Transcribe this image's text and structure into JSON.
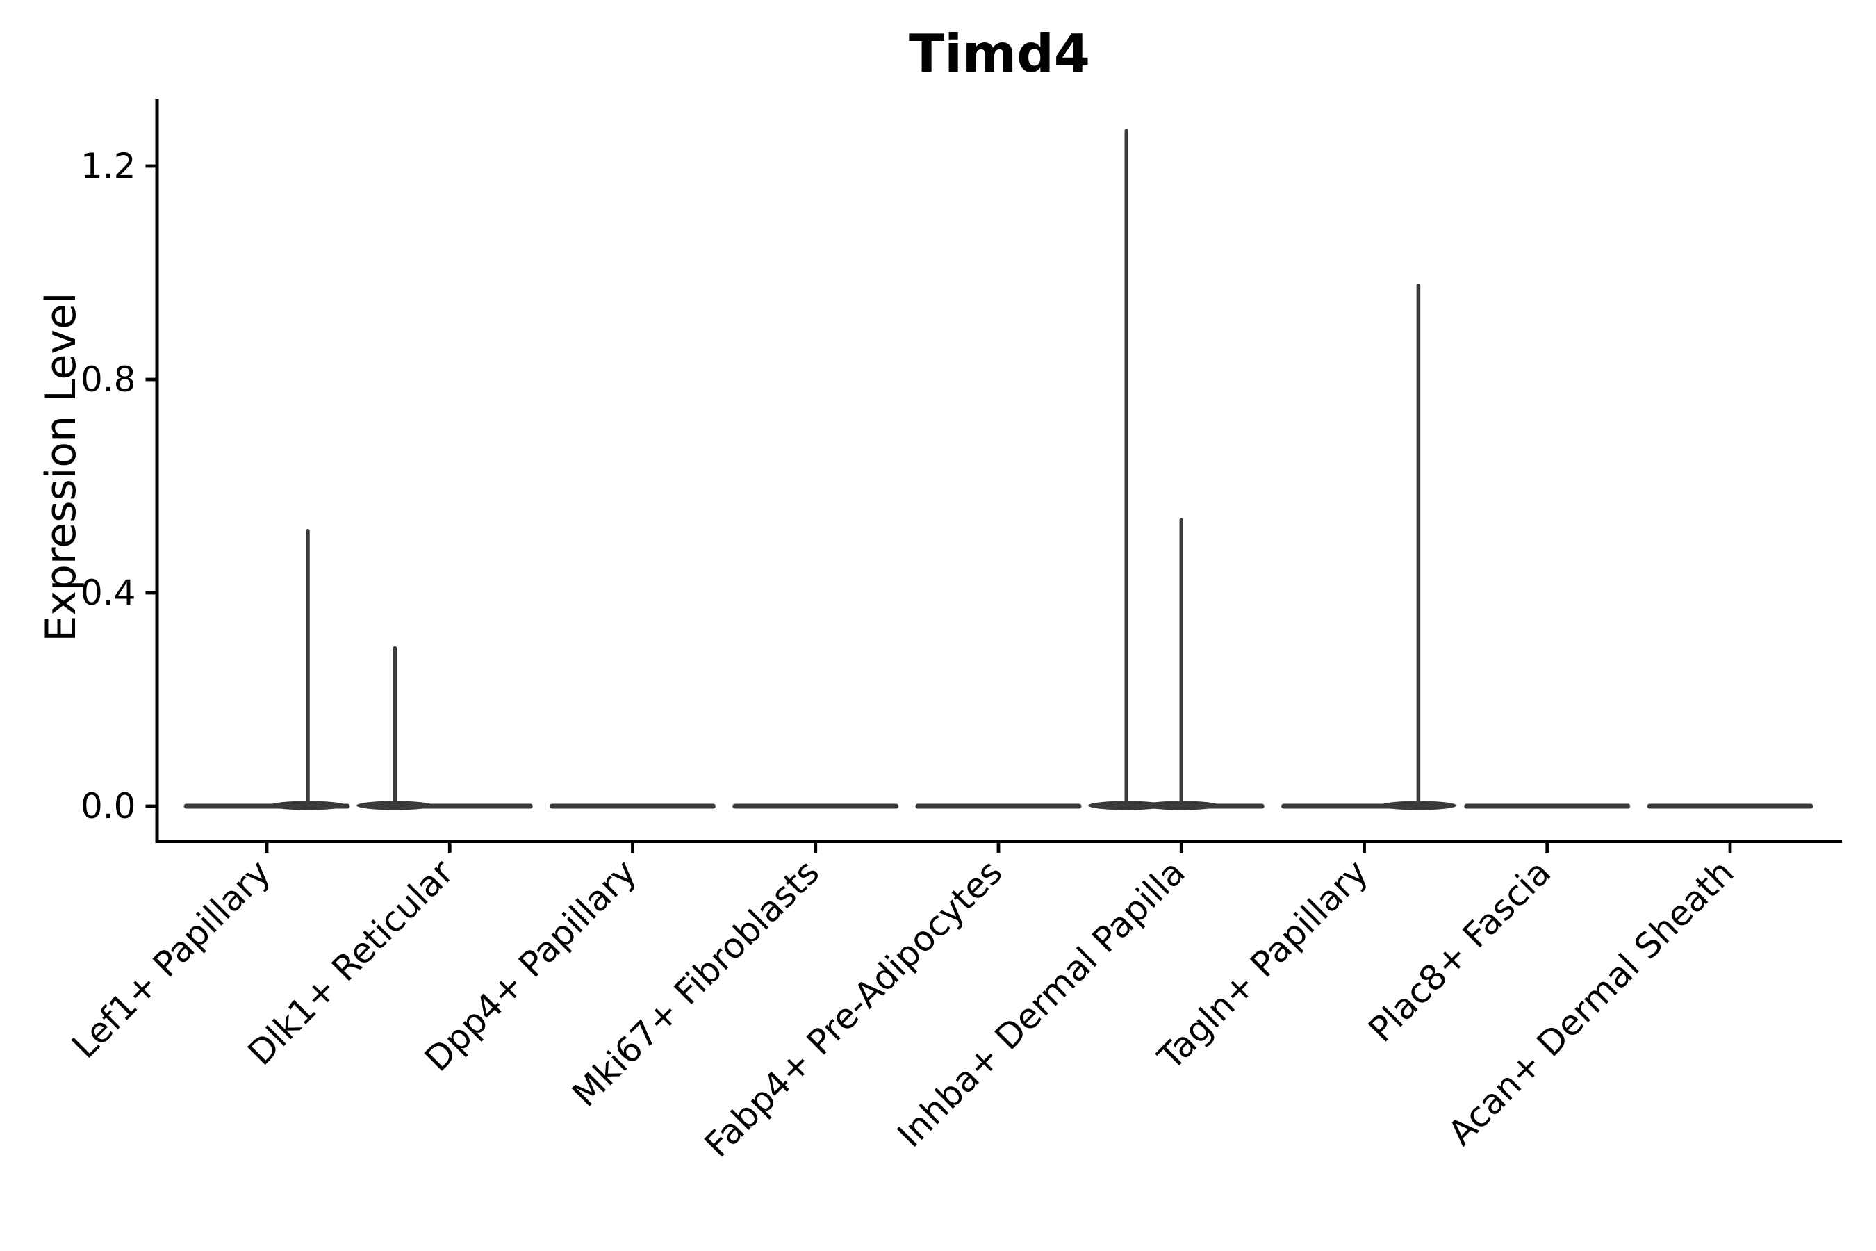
{
  "chart_data": {
    "type": "violin",
    "title": "Timd4",
    "ylabel": "Expression Level",
    "xlabel": "",
    "legend": "none",
    "grid": false,
    "background": "#ffffff",
    "yticks": [
      {
        "label": "0.0",
        "value": 0.0
      },
      {
        "label": "0.4",
        "value": 0.4
      },
      {
        "label": "0.8",
        "value": 0.8
      },
      {
        "label": "1.2",
        "value": 1.2
      }
    ],
    "ylim": [
      -0.07,
      1.33
    ],
    "categories": [
      "Lef1+ Papillary",
      "Dlk1+ Reticular",
      "Dpp4+ Papillary",
      "Mki67+ Fibroblasts",
      "Fabp4+ Pre-Adipocytes",
      "Inhba+ Dermal Papilla",
      "Tagln+ Papillary",
      "Plac8+ Fascia",
      "Acan+ Dermal Sheath"
    ],
    "violins": [
      {
        "category": "Lef1+ Papillary",
        "baseline_value": 0.0,
        "max_expression": 0.52,
        "peaks": [
          {
            "value": 0.52,
            "x_offset_frac": 0.224
          }
        ]
      },
      {
        "category": "Dlk1+ Reticular",
        "baseline_value": 0.0,
        "max_expression": 0.3,
        "peaks": [
          {
            "value": 0.3,
            "x_offset_frac": -0.3
          }
        ]
      },
      {
        "category": "Dpp4+ Papillary",
        "baseline_value": 0.0,
        "max_expression": 0.0,
        "peaks": []
      },
      {
        "category": "Mki67+ Fibroblasts",
        "baseline_value": 0.0,
        "max_expression": 0.0,
        "peaks": []
      },
      {
        "category": "Fabp4+ Pre-Adipocytes",
        "baseline_value": 0.0,
        "max_expression": 0.0,
        "peaks": []
      },
      {
        "category": "Inhba+ Dermal Papilla",
        "baseline_value": 0.0,
        "max_expression": 1.27,
        "peaks": [
          {
            "value": 1.27,
            "x_offset_frac": -0.3
          },
          {
            "value": 0.54,
            "x_offset_frac": 0.0
          }
        ]
      },
      {
        "category": "Tagln+ Papillary",
        "baseline_value": 0.0,
        "max_expression": 0.98,
        "peaks": [
          {
            "value": 0.98,
            "x_offset_frac": 0.296
          }
        ]
      },
      {
        "category": "Plac8+ Fascia",
        "baseline_value": 0.0,
        "max_expression": 0.0,
        "peaks": []
      },
      {
        "category": "Acan+ Dermal Sheath",
        "baseline_value": 0.0,
        "max_expression": 0.0,
        "peaks": []
      }
    ],
    "colors": {
      "violin_stroke": "#3a3a3a",
      "axis": "#000000",
      "text": "#000000"
    }
  }
}
